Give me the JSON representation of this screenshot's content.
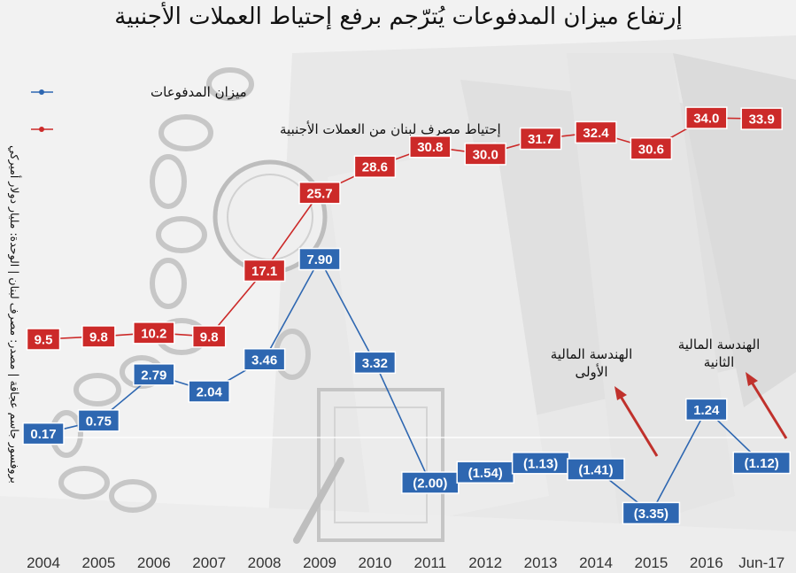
{
  "chart_data": {
    "type": "line",
    "title": "إرتفاع ميزان المدفوعات يُترّجم برفع إحتياط العملات الأجنبية",
    "side_note": "بروفسور جاسم عجاقة | مصدر: مصرف لبنان | الوحدة: مليار دولار أميركي",
    "categories": [
      "2004",
      "2005",
      "2006",
      "2007",
      "2008",
      "2009",
      "2010",
      "2011",
      "2012",
      "2013",
      "2014",
      "2015",
      "2016",
      "Jun-17"
    ],
    "series": [
      {
        "name": "ميزان المدفوعات",
        "color": "#2e67b1",
        "values": [
          0.17,
          0.75,
          2.79,
          2.04,
          3.46,
          7.9,
          3.32,
          -2.0,
          -1.54,
          -1.13,
          -1.41,
          -3.35,
          1.24,
          -1.12
        ],
        "labels": [
          "0.17",
          "0.75",
          "2.79",
          "2.04",
          "3.46",
          "7.90",
          "3.32",
          "(2.00)",
          "(1.54)",
          "(1.13)",
          "(1.41)",
          "(3.35)",
          "1.24",
          "(1.12)"
        ]
      },
      {
        "name": "إحتياط مصرف لبنان من العملات الأجنبية",
        "color": "#cc2a29",
        "values": [
          9.5,
          9.8,
          10.2,
          9.8,
          17.1,
          25.7,
          28.6,
          30.8,
          30.0,
          31.7,
          32.4,
          30.6,
          34.0,
          33.9
        ],
        "labels": [
          "9.5",
          "9.8",
          "10.2",
          "9.8",
          "17.1",
          "25.7",
          "28.6",
          "30.8",
          "30.0",
          "31.7",
          "32.4",
          "30.6",
          "34.0",
          "33.9"
        ]
      }
    ],
    "annotations": [
      {
        "line1": "الهندسة المالية",
        "line2": "الأولى",
        "category": "2015"
      },
      {
        "line1": "الهندسة المالية",
        "line2": "الثانية",
        "category": "Jun-17"
      }
    ],
    "legend_position": "top-left",
    "grid": false
  }
}
